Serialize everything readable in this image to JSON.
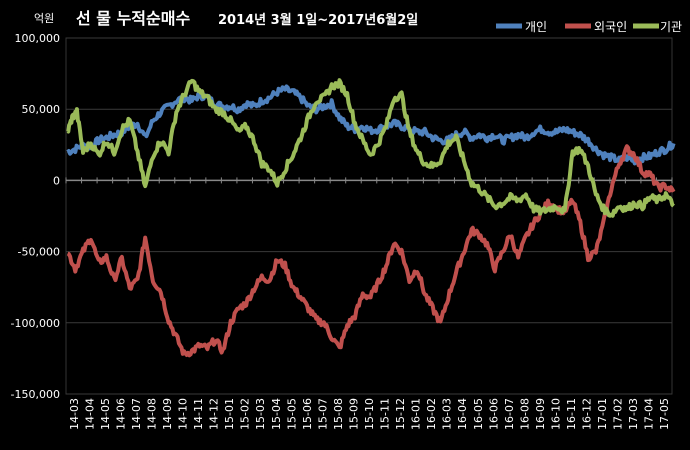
{
  "chart_data": {
    "type": "line",
    "title_main": "선 물 누적순매수",
    "title_sub": "2014년 3월 1일~2017년6월2일",
    "ylabel": "억원",
    "xlabel": "",
    "ylim": [
      -150000,
      100000
    ],
    "yticks": [
      100000,
      50000,
      0,
      -50000,
      -100000,
      -150000
    ],
    "ytick_labels": [
      "100,000",
      "50,000",
      "0",
      "-50,000",
      "-100,000",
      "-150,000"
    ],
    "grid": true,
    "legend_position": "top-right",
    "categories": [
      "14-03",
      "14-04",
      "14-05",
      "14-06",
      "14-07",
      "14-08",
      "14-09",
      "14-10",
      "14-11",
      "14-12",
      "15-01",
      "15-02",
      "15-03",
      "15-04",
      "15-05",
      "15-06",
      "15-07",
      "15-08",
      "15-09",
      "15-10",
      "15-11",
      "15-12",
      "16-01",
      "16-02",
      "16-03",
      "16-04",
      "16-05",
      "16-06",
      "16-07",
      "16-08",
      "16-09",
      "16-10",
      "16-11",
      "16-12",
      "17-01",
      "17-02",
      "17-03",
      "17-04",
      "17-05"
    ],
    "series": [
      {
        "name": "개인",
        "color": "#4f81bd",
        "points": [
          [
            0,
            20000
          ],
          [
            0.5,
            22000
          ],
          [
            1,
            25000
          ],
          [
            1.5,
            24000
          ],
          [
            2,
            28000
          ],
          [
            2.5,
            30000
          ],
          [
            3,
            32000
          ],
          [
            3.5,
            34000
          ],
          [
            4,
            38000
          ],
          [
            4.5,
            40000
          ],
          [
            5,
            30000
          ],
          [
            5.5,
            42000
          ],
          [
            6,
            48000
          ],
          [
            6.5,
            52000
          ],
          [
            7,
            56000
          ],
          [
            7.5,
            58000
          ],
          [
            8,
            56000
          ],
          [
            8.5,
            60000
          ],
          [
            9,
            58000
          ],
          [
            9.5,
            54000
          ],
          [
            10,
            52000
          ],
          [
            10.5,
            52000
          ],
          [
            11,
            50000
          ],
          [
            11.5,
            54000
          ],
          [
            12,
            52000
          ],
          [
            12.5,
            56000
          ],
          [
            13,
            58000
          ],
          [
            13.5,
            62000
          ],
          [
            14,
            64000
          ],
          [
            14.5,
            62000
          ],
          [
            15,
            58000
          ],
          [
            15.5,
            52000
          ],
          [
            16,
            50000
          ],
          [
            16.5,
            52000
          ],
          [
            17,
            54000
          ],
          [
            17.5,
            44000
          ],
          [
            18,
            38000
          ],
          [
            18.5,
            36000
          ],
          [
            19,
            38000
          ],
          [
            19.5,
            35000
          ],
          [
            20,
            36000
          ],
          [
            20.5,
            38000
          ],
          [
            21,
            40000
          ],
          [
            21.5,
            38000
          ],
          [
            22,
            36000
          ],
          [
            22.5,
            34000
          ],
          [
            23,
            34000
          ],
          [
            23.5,
            30000
          ],
          [
            24,
            28000
          ],
          [
            24.5,
            28000
          ],
          [
            25,
            32000
          ],
          [
            25.5,
            34000
          ],
          [
            26,
            30000
          ],
          [
            26.5,
            32000
          ],
          [
            27,
            30000
          ],
          [
            27.5,
            32000
          ],
          [
            28,
            28000
          ],
          [
            28.5,
            30000
          ],
          [
            29,
            32000
          ],
          [
            29.5,
            30000
          ],
          [
            30,
            34000
          ],
          [
            30.5,
            36000
          ],
          [
            31,
            34000
          ],
          [
            31.5,
            34000
          ],
          [
            32,
            36000
          ],
          [
            32.5,
            34000
          ],
          [
            33,
            32000
          ],
          [
            33.5,
            28000
          ],
          [
            34,
            22000
          ],
          [
            34.5,
            18000
          ],
          [
            35,
            16000
          ],
          [
            35.5,
            14000
          ],
          [
            36,
            16000
          ],
          [
            36.5,
            14000
          ],
          [
            37,
            16000
          ],
          [
            37.5,
            17000
          ],
          [
            38,
            20000
          ],
          [
            38.5,
            22000
          ],
          [
            39,
            26000
          ]
        ]
      },
      {
        "name": "외국인",
        "color": "#c0504d",
        "points": [
          [
            0,
            -50000
          ],
          [
            0.5,
            -62000
          ],
          [
            1,
            -50000
          ],
          [
            1.5,
            -40000
          ],
          [
            2,
            -58000
          ],
          [
            2.5,
            -54000
          ],
          [
            3,
            -70000
          ],
          [
            3.5,
            -55000
          ],
          [
            4,
            -76000
          ],
          [
            4.5,
            -70000
          ],
          [
            5,
            -40000
          ],
          [
            5.5,
            -70000
          ],
          [
            6,
            -78000
          ],
          [
            6.5,
            -98000
          ],
          [
            7,
            -110000
          ],
          [
            7.5,
            -122000
          ],
          [
            8,
            -120000
          ],
          [
            8.5,
            -116000
          ],
          [
            9,
            -118000
          ],
          [
            9.5,
            -112000
          ],
          [
            10,
            -120000
          ],
          [
            10.5,
            -100000
          ],
          [
            11,
            -90000
          ],
          [
            11.5,
            -86000
          ],
          [
            12,
            -76000
          ],
          [
            12.5,
            -68000
          ],
          [
            13,
            -70000
          ],
          [
            13.5,
            -56000
          ],
          [
            14,
            -60000
          ],
          [
            14.5,
            -75000
          ],
          [
            15,
            -82000
          ],
          [
            15.5,
            -90000
          ],
          [
            16,
            -98000
          ],
          [
            16.5,
            -100000
          ],
          [
            17,
            -110000
          ],
          [
            17.5,
            -118000
          ],
          [
            18,
            -102000
          ],
          [
            18.5,
            -95000
          ],
          [
            19,
            -80000
          ],
          [
            19.5,
            -82000
          ],
          [
            20,
            -72000
          ],
          [
            20.5,
            -60000
          ],
          [
            21,
            -44000
          ],
          [
            21.5,
            -50000
          ],
          [
            22,
            -70000
          ],
          [
            22.5,
            -62000
          ],
          [
            23,
            -80000
          ],
          [
            23.5,
            -90000
          ],
          [
            24,
            -100000
          ],
          [
            24.5,
            -82000
          ],
          [
            25,
            -65000
          ],
          [
            25.5,
            -50000
          ],
          [
            26,
            -35000
          ],
          [
            26.5,
            -38000
          ],
          [
            27,
            -45000
          ],
          [
            27.5,
            -62000
          ],
          [
            28,
            -50000
          ],
          [
            28.5,
            -38000
          ],
          [
            29,
            -54000
          ],
          [
            29.5,
            -40000
          ],
          [
            30,
            -30000
          ],
          [
            30.5,
            -22000
          ],
          [
            31,
            -15000
          ],
          [
            31.5,
            -20000
          ],
          [
            32,
            -22000
          ],
          [
            32.5,
            -14000
          ],
          [
            33,
            -30000
          ],
          [
            33.5,
            -54000
          ],
          [
            34,
            -50000
          ],
          [
            34.5,
            -30000
          ],
          [
            35,
            -5000
          ],
          [
            35.5,
            12000
          ],
          [
            36,
            22000
          ],
          [
            36.5,
            18000
          ],
          [
            37,
            6000
          ],
          [
            37.5,
            4000
          ],
          [
            38,
            -5000
          ],
          [
            38.5,
            -4000
          ],
          [
            39,
            -8000
          ]
        ]
      },
      {
        "name": "기관",
        "color": "#9bbb59",
        "points": [
          [
            0,
            34000
          ],
          [
            0.3,
            44000
          ],
          [
            0.6,
            48000
          ],
          [
            1,
            20000
          ],
          [
            1.5,
            26000
          ],
          [
            2,
            18000
          ],
          [
            2.5,
            28000
          ],
          [
            3,
            20000
          ],
          [
            3.5,
            36000
          ],
          [
            4,
            42000
          ],
          [
            4.5,
            20000
          ],
          [
            5,
            -5000
          ],
          [
            5.5,
            18000
          ],
          [
            6,
            28000
          ],
          [
            6.5,
            20000
          ],
          [
            7,
            48000
          ],
          [
            7.5,
            60000
          ],
          [
            8,
            70000
          ],
          [
            8.5,
            62000
          ],
          [
            9,
            58000
          ],
          [
            9.5,
            50000
          ],
          [
            10,
            48000
          ],
          [
            10.5,
            42000
          ],
          [
            11,
            34000
          ],
          [
            11.5,
            38000
          ],
          [
            12,
            28000
          ],
          [
            12.5,
            12000
          ],
          [
            13,
            8000
          ],
          [
            13.5,
            -2000
          ],
          [
            14,
            8000
          ],
          [
            14.5,
            18000
          ],
          [
            15,
            30000
          ],
          [
            15.5,
            44000
          ],
          [
            16,
            56000
          ],
          [
            16.5,
            58000
          ],
          [
            17,
            66000
          ],
          [
            17.5,
            68000
          ],
          [
            18,
            60000
          ],
          [
            18.5,
            40000
          ],
          [
            19,
            28000
          ],
          [
            19.5,
            18000
          ],
          [
            20,
            26000
          ],
          [
            20.5,
            38000
          ],
          [
            21,
            58000
          ],
          [
            21.5,
            60000
          ],
          [
            22,
            34000
          ],
          [
            22.5,
            20000
          ],
          [
            23,
            12000
          ],
          [
            23.5,
            10000
          ],
          [
            24,
            14000
          ],
          [
            24.5,
            26000
          ],
          [
            25,
            30000
          ],
          [
            25.5,
            14000
          ],
          [
            26,
            -2000
          ],
          [
            26.5,
            -6000
          ],
          [
            27,
            -12000
          ],
          [
            27.5,
            -18000
          ],
          [
            28,
            -16000
          ],
          [
            28.5,
            -12000
          ],
          [
            29,
            -14000
          ],
          [
            29.5,
            -10000
          ],
          [
            30,
            -20000
          ],
          [
            30.5,
            -22000
          ],
          [
            31,
            -20000
          ],
          [
            31.5,
            -18000
          ],
          [
            32,
            -22000
          ],
          [
            32.5,
            20000
          ],
          [
            33,
            22000
          ],
          [
            33.5,
            10000
          ],
          [
            34,
            -10000
          ],
          [
            34.5,
            -20000
          ],
          [
            35,
            -24000
          ],
          [
            35.5,
            -18000
          ],
          [
            36,
            -20000
          ],
          [
            36.5,
            -16000
          ],
          [
            37,
            -18000
          ],
          [
            37.5,
            -12000
          ],
          [
            38,
            -14000
          ],
          [
            38.5,
            -10000
          ],
          [
            39,
            -18000
          ]
        ]
      }
    ]
  }
}
